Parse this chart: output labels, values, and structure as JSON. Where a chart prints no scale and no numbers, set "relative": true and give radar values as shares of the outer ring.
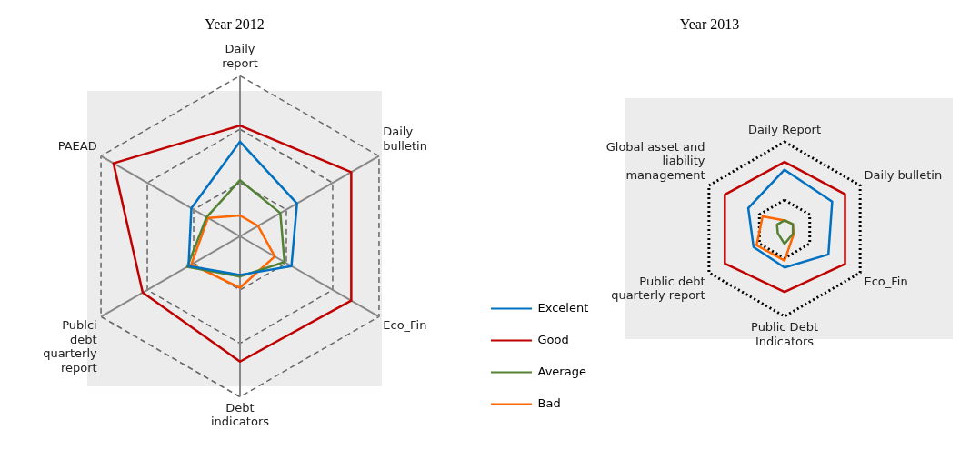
{
  "chart_data": [
    {
      "type": "radar",
      "title": "Year 2012",
      "relative": true,
      "categories": [
        "Daily report",
        "Daily bulletin",
        "Eco_Fin",
        "Debt indicators",
        "Publci debt quarterly report",
        "PAEAD"
      ],
      "line_style": "solid",
      "marker": "none",
      "legend": false,
      "series": [
        {
          "color": "#0070c0",
          "values": [
            0.59,
            0.41,
            0.37,
            0.24,
            0.37,
            0.35
          ]
        },
        {
          "color": "#c00000",
          "values": [
            0.69,
            0.8,
            0.8,
            0.78,
            0.7,
            0.91
          ]
        },
        {
          "color": "#548235",
          "values": [
            0.35,
            0.29,
            0.32,
            0.25,
            0.38,
            0.24
          ]
        },
        {
          "color": "#ff6600",
          "values": [
            0.13,
            0.13,
            0.25,
            0.32,
            0.35,
            0.23
          ]
        }
      ]
    },
    {
      "type": "radar",
      "title": "Year 2013",
      "relative": true,
      "categories": [
        "Daily Report",
        "Daily bulletin",
        "Eco_Fin",
        "Public Debt Indicators",
        "Public debt quarterly report",
        "Global asset and liability management"
      ],
      "line_style": "solid",
      "marker": "none",
      "legend": "bottom left",
      "series": [
        {
          "name": "Excelent",
          "color": "#0070c0",
          "values": [
            0.68,
            0.63,
            0.58,
            0.44,
            0.41,
            0.48
          ]
        },
        {
          "name": "Good",
          "color": "#c00000",
          "values": [
            0.77,
            0.8,
            0.8,
            0.72,
            0.79,
            0.79
          ]
        },
        {
          "name": "Average",
          "color": "#548235",
          "values": [
            0.1,
            0.11,
            0.11,
            0.17,
            0.09,
            0.1
          ]
        },
        {
          "name": "Bad",
          "color": "#ff6600",
          "values": [
            0.1,
            0.11,
            0.12,
            0.36,
            0.37,
            0.29
          ]
        }
      ]
    }
  ]
}
